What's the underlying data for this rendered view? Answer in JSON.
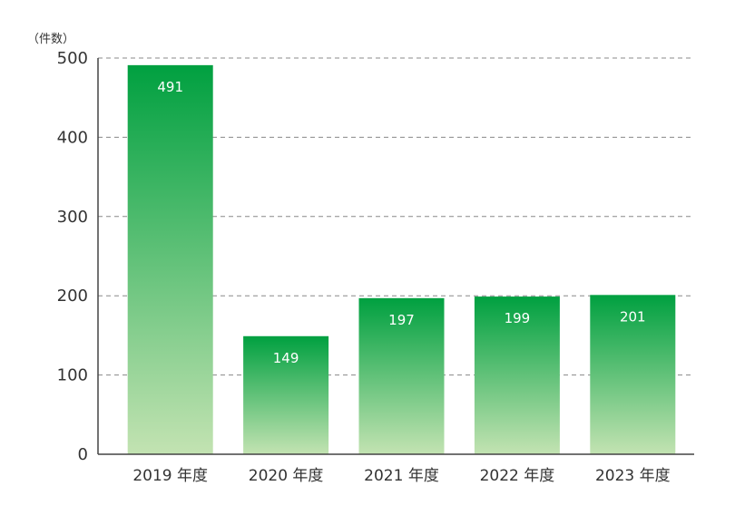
{
  "chart_data": {
    "type": "bar",
    "unit_label": "（件数）",
    "categories": [
      "2019 年度",
      "2020 年度",
      "2021 年度",
      "2022 年度",
      "2023 年度"
    ],
    "values": [
      491,
      149,
      197,
      199,
      201
    ],
    "data_labels": [
      "491",
      "149",
      "197",
      "199",
      "201"
    ],
    "ylim": [
      0,
      500
    ],
    "yticks": [
      0,
      100,
      200,
      300,
      400,
      500
    ],
    "ytick_labels": [
      "0",
      "100",
      "200",
      "300",
      "400",
      "500"
    ],
    "grid": "dashed-horizontal",
    "colors": {
      "bar_top": "#00a040",
      "bar_bottom": "#c3e3b2",
      "grid": "#888888",
      "axis": "#444444"
    }
  }
}
